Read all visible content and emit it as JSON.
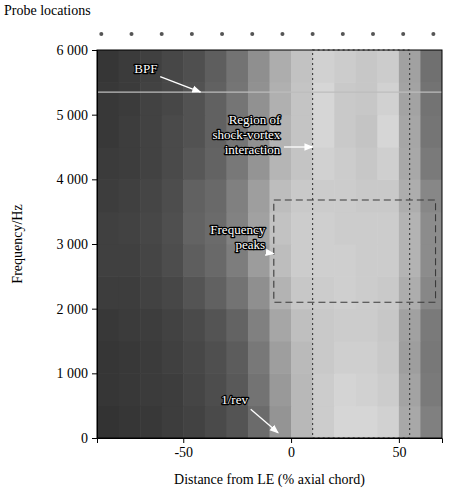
{
  "chart_data": {
    "type": "heatmap",
    "xlabel": "Distance from LE (% axial chord)",
    "ylabel": "Frequency/Hz",
    "xlim": [
      -90,
      70
    ],
    "xticks": [
      -50,
      0,
      50
    ],
    "ylim": [
      0,
      6000
    ],
    "yticks": [
      0,
      {
        "value": 1000,
        "label": "1 000"
      },
      {
        "value": 2000,
        "label": "2 000"
      },
      {
        "value": 3000,
        "label": "3 000"
      },
      {
        "value": 4000,
        "label": "4 000"
      },
      {
        "value": 5000,
        "label": "5 000"
      },
      {
        "value": 6000,
        "label": "6 000"
      }
    ],
    "x_edges": [
      -90,
      -80,
      -70,
      -60,
      -50,
      -40,
      -30,
      -20,
      -10,
      0,
      10,
      20,
      30,
      40,
      50,
      60,
      70
    ],
    "y_edges": [
      0,
      500,
      1000,
      1500,
      2000,
      2500,
      3000,
      3500,
      4000,
      4500,
      5000,
      5500,
      6000
    ],
    "zlim": [
      0,
      1
    ],
    "cells": [
      [
        0.2,
        0.21,
        0.22,
        0.24,
        0.26,
        0.29,
        0.33,
        0.42,
        0.58,
        0.72,
        0.8,
        0.84,
        0.84,
        0.82,
        0.66,
        0.5
      ],
      [
        0.21,
        0.22,
        0.23,
        0.24,
        0.27,
        0.3,
        0.35,
        0.45,
        0.6,
        0.72,
        0.8,
        0.83,
        0.82,
        0.8,
        0.64,
        0.48
      ],
      [
        0.21,
        0.22,
        0.23,
        0.25,
        0.28,
        0.31,
        0.36,
        0.47,
        0.62,
        0.73,
        0.79,
        0.81,
        0.81,
        0.79,
        0.62,
        0.47
      ],
      [
        0.22,
        0.23,
        0.24,
        0.26,
        0.29,
        0.33,
        0.39,
        0.5,
        0.65,
        0.75,
        0.79,
        0.8,
        0.8,
        0.78,
        0.63,
        0.48
      ],
      [
        0.24,
        0.24,
        0.26,
        0.28,
        0.33,
        0.38,
        0.45,
        0.56,
        0.7,
        0.78,
        0.8,
        0.81,
        0.8,
        0.79,
        0.68,
        0.53
      ],
      [
        0.25,
        0.25,
        0.27,
        0.3,
        0.37,
        0.41,
        0.49,
        0.61,
        0.74,
        0.8,
        0.81,
        0.81,
        0.8,
        0.8,
        0.7,
        0.55
      ],
      [
        0.25,
        0.26,
        0.28,
        0.31,
        0.39,
        0.42,
        0.51,
        0.63,
        0.76,
        0.8,
        0.81,
        0.8,
        0.8,
        0.8,
        0.7,
        0.55
      ],
      [
        0.24,
        0.25,
        0.27,
        0.3,
        0.38,
        0.41,
        0.5,
        0.62,
        0.74,
        0.79,
        0.8,
        0.8,
        0.79,
        0.79,
        0.68,
        0.53
      ],
      [
        0.23,
        0.24,
        0.26,
        0.29,
        0.34,
        0.39,
        0.47,
        0.58,
        0.71,
        0.77,
        0.82,
        0.8,
        0.78,
        0.81,
        0.66,
        0.48
      ],
      [
        0.22,
        0.24,
        0.26,
        0.29,
        0.32,
        0.38,
        0.46,
        0.57,
        0.7,
        0.77,
        0.84,
        0.79,
        0.77,
        0.84,
        0.65,
        0.46
      ],
      [
        0.22,
        0.23,
        0.26,
        0.28,
        0.32,
        0.38,
        0.46,
        0.57,
        0.69,
        0.77,
        0.84,
        0.79,
        0.78,
        0.82,
        0.64,
        0.45
      ],
      [
        0.21,
        0.23,
        0.25,
        0.28,
        0.31,
        0.37,
        0.45,
        0.56,
        0.68,
        0.76,
        0.82,
        0.8,
        0.78,
        0.8,
        0.63,
        0.44
      ]
    ],
    "probes": {
      "label": "Probe locations",
      "x": [
        -88,
        -74,
        -60,
        -46,
        -32,
        -18,
        -4,
        10,
        24,
        38,
        52,
        66
      ]
    },
    "hlines": [
      5350
    ],
    "regions": [
      {
        "xlim": [
          10,
          55
        ],
        "ylim": [
          0,
          6000
        ],
        "line_style": "dotted"
      },
      {
        "xlim": [
          -8,
          67
        ],
        "ylim": [
          2100,
          3680
        ],
        "line_style": "dashed"
      }
    ],
    "annotations": [
      {
        "text": [
          "BPF"
        ],
        "x": -62,
        "y": 5650,
        "arrow_to": [
          -42,
          5350
        ]
      },
      {
        "text": [
          "Region of",
          "shock-vortex",
          "interaction"
        ],
        "x": -5,
        "y": 4850,
        "arrow_to": [
          10,
          4500
        ]
      },
      {
        "text": [
          "Frequency",
          "peaks"
        ],
        "x": -12,
        "y": 3150,
        "arrow_to": [
          -8,
          2850
        ]
      },
      {
        "text": [
          "1/rev"
        ],
        "x": -20,
        "y": 520,
        "arrow_to": [
          -6,
          80
        ]
      }
    ]
  }
}
